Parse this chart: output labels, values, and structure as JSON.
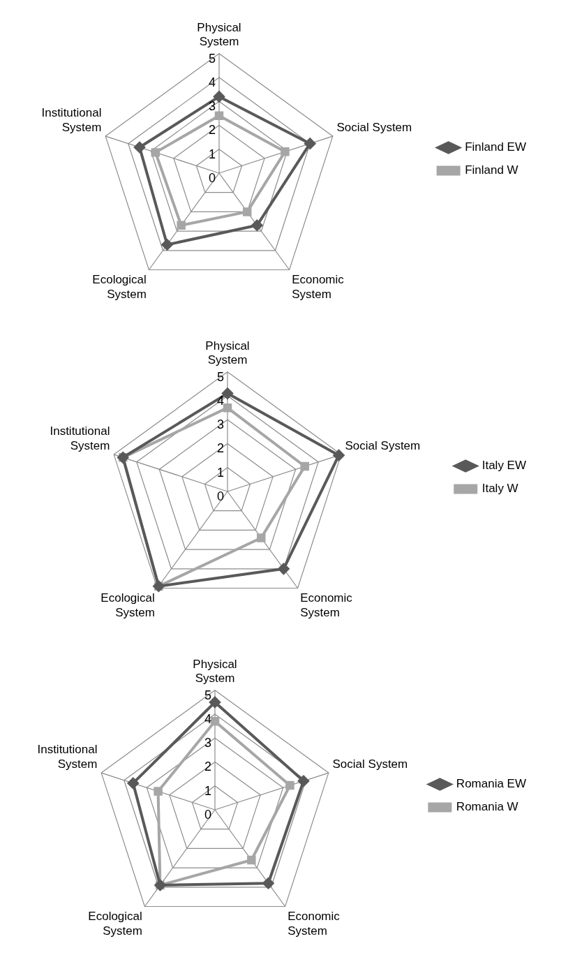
{
  "chart_data": [
    {
      "type": "radar",
      "categories": [
        "Physical System",
        "Social System",
        "Economic System",
        "Ecological System",
        "Institutional System"
      ],
      "ylim": [
        0,
        5
      ],
      "yticks": [
        0,
        1,
        2,
        3,
        4,
        5
      ],
      "grid": true,
      "legend": "right",
      "line_style": "solid",
      "series": [
        {
          "name": "Finland EW",
          "color": "#595959",
          "marker": "diamond",
          "values": [
            3.2,
            4.0,
            2.7,
            3.7,
            3.5
          ]
        },
        {
          "name": "Finland W",
          "color": "#a6a6a6",
          "marker": "square",
          "values": [
            2.4,
            2.9,
            2.0,
            2.7,
            2.8
          ]
        }
      ]
    },
    {
      "type": "radar",
      "categories": [
        "Physical System",
        "Social System",
        "Economic System",
        "Ecological System",
        "Institutional System"
      ],
      "ylim": [
        0,
        5
      ],
      "yticks": [
        0,
        1,
        2,
        3,
        4,
        5
      ],
      "grid": true,
      "legend": "right",
      "line_style": "solid",
      "series": [
        {
          "name": "Italy EW",
          "color": "#595959",
          "marker": "diamond",
          "values": [
            4.1,
            4.9,
            4.0,
            4.9,
            4.6
          ]
        },
        {
          "name": "Italy W",
          "color": "#a6a6a6",
          "marker": "square",
          "values": [
            3.5,
            3.4,
            2.4,
            4.9,
            4.6
          ]
        }
      ]
    },
    {
      "type": "radar",
      "categories": [
        "Physical System",
        "Social System",
        "Economic System",
        "Ecological System",
        "Institutional System"
      ],
      "ylim": [
        0,
        5
      ],
      "yticks": [
        0,
        1,
        2,
        3,
        4,
        5
      ],
      "grid": true,
      "legend": "right",
      "line_style": "solid",
      "series": [
        {
          "name": "Romania EW",
          "color": "#595959",
          "marker": "diamond",
          "values": [
            4.5,
            3.9,
            3.8,
            3.9,
            3.6
          ]
        },
        {
          "name": "Romania W",
          "color": "#a6a6a6",
          "marker": "square",
          "values": [
            3.7,
            3.3,
            2.6,
            3.9,
            2.5
          ]
        }
      ]
    }
  ]
}
